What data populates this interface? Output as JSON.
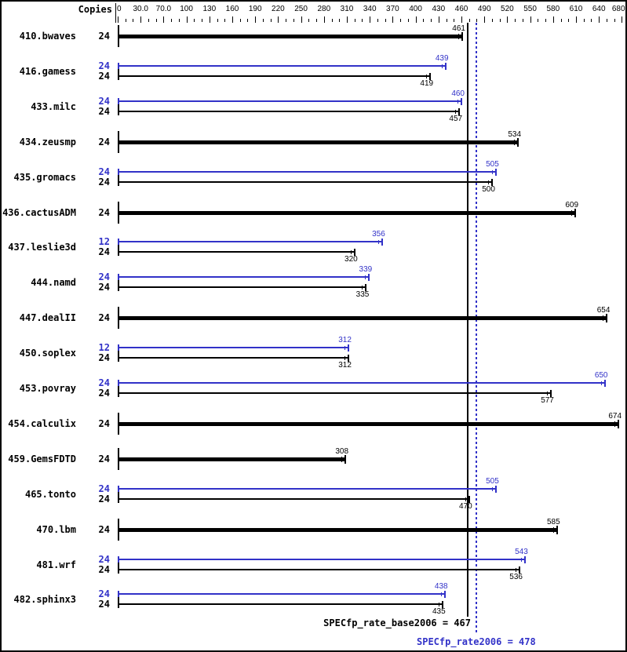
{
  "header": {
    "copies_label": "Copies"
  },
  "colors": {
    "base": "#000000",
    "peak": "#3232c8"
  },
  "footer": {
    "base_label": "SPECfp_rate_base2006 = 467",
    "peak_label": "SPECfp_rate2006 = 478"
  },
  "chart_data": {
    "type": "bar",
    "orientation": "horizontal",
    "axis": {
      "tick_labels": [
        "0",
        "30.0",
        "70.0",
        "100",
        "130",
        "160",
        "190",
        "220",
        "250",
        "280",
        "310",
        "340",
        "370",
        "400",
        "430",
        "460",
        "490",
        "520",
        "550",
        "580",
        "610",
        "640",
        "680"
      ],
      "tick_values": [
        0,
        30,
        70,
        100,
        130,
        160,
        190,
        220,
        250,
        280,
        310,
        340,
        370,
        400,
        430,
        460,
        490,
        520,
        550,
        580,
        610,
        640,
        680
      ],
      "grid": false
    },
    "reference_lines": [
      {
        "name": "base_mean",
        "value": 467,
        "style": "solid",
        "color": "#000000"
      },
      {
        "name": "peak_mean",
        "value": 478,
        "style": "dotted",
        "color": "#3232c8"
      }
    ],
    "legend": {
      "peak_color_meaning": "peak (blue thin bar)",
      "base_color_meaning": "base (black bar)"
    },
    "benchmarks": [
      {
        "name": "410.bwaves",
        "style": "single",
        "copies_base": "24",
        "base": 461
      },
      {
        "name": "416.gamess",
        "style": "pair",
        "copies_peak": "24",
        "peak": 439,
        "copies_base": "24",
        "base": 419
      },
      {
        "name": "433.milc",
        "style": "pair",
        "copies_peak": "24",
        "peak": 460,
        "copies_base": "24",
        "base": 457
      },
      {
        "name": "434.zeusmp",
        "style": "single",
        "copies_base": "24",
        "base": 534
      },
      {
        "name": "435.gromacs",
        "style": "pair",
        "copies_peak": "24",
        "peak": 505,
        "copies_base": "24",
        "base": 500
      },
      {
        "name": "436.cactusADM",
        "style": "single",
        "copies_base": "24",
        "base": 609
      },
      {
        "name": "437.leslie3d",
        "style": "pair",
        "copies_peak": "12",
        "peak": 356,
        "copies_base": "24",
        "base": 320
      },
      {
        "name": "444.namd",
        "style": "pair",
        "copies_peak": "24",
        "peak": 339,
        "copies_base": "24",
        "base": 335
      },
      {
        "name": "447.dealII",
        "style": "single",
        "copies_base": "24",
        "base": 654
      },
      {
        "name": "450.soplex",
        "style": "pair",
        "copies_peak": "12",
        "peak": 312,
        "copies_base": "24",
        "base": 312
      },
      {
        "name": "453.povray",
        "style": "pair",
        "copies_peak": "24",
        "peak": 650,
        "copies_base": "24",
        "base": 577
      },
      {
        "name": "454.calculix",
        "style": "single",
        "copies_base": "24",
        "base": 674
      },
      {
        "name": "459.GemsFDTD",
        "style": "single",
        "copies_base": "24",
        "base": 308
      },
      {
        "name": "465.tonto",
        "style": "pair",
        "copies_peak": "24",
        "peak": 505,
        "copies_base": "24",
        "base": 470
      },
      {
        "name": "470.lbm",
        "style": "single",
        "copies_base": "24",
        "base": 585
      },
      {
        "name": "481.wrf",
        "style": "pair",
        "copies_peak": "24",
        "peak": 543,
        "copies_base": "24",
        "base": 536
      },
      {
        "name": "482.sphinx3",
        "style": "pair",
        "copies_peak": "24",
        "peak": 438,
        "copies_base": "24",
        "base": 435
      }
    ]
  }
}
